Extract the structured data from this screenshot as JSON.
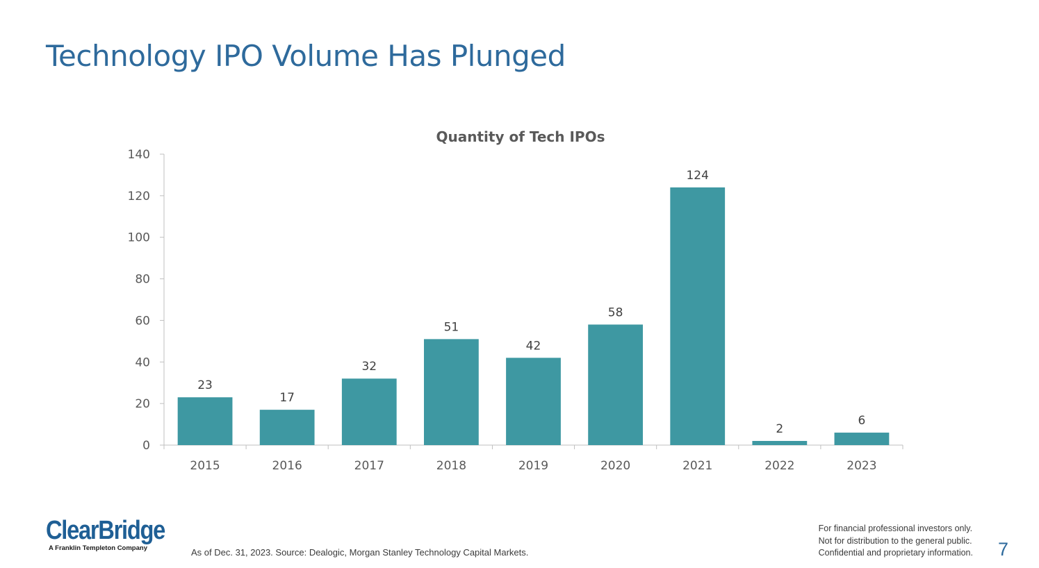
{
  "slide": {
    "title": "Technology IPO Volume Has Plunged",
    "footnote": "As of Dec. 31, 2023. Source: Dealogic, Morgan Stanley Technology Capital Markets.",
    "disclaimer": [
      "For financial professional investors only.",
      "Not for distribution to the general public.",
      "Confidential and proprietary information."
    ],
    "page_number": "7",
    "logo": {
      "name": "ClearBridge",
      "tagline": "A Franklin Templeton Company"
    }
  },
  "colors": {
    "title": "#2E6A9C",
    "bar": "#3E98A2",
    "axis": "#BFBFBF",
    "tick_text": "#595959",
    "chart_title": "#595959",
    "logo": "#1F5F95"
  },
  "chart_data": {
    "type": "bar",
    "title": "Quantity of Tech IPOs",
    "categories": [
      "2015",
      "2016",
      "2017",
      "2018",
      "2019",
      "2020",
      "2021",
      "2022",
      "2023"
    ],
    "values": [
      23,
      17,
      32,
      51,
      42,
      58,
      124,
      2,
      6
    ],
    "xlabel": "",
    "ylabel": "",
    "ylim": [
      0,
      140
    ],
    "yticks": [
      0,
      20,
      40,
      60,
      80,
      100,
      120,
      140
    ],
    "grid": false,
    "legend": "none",
    "data_labels": true
  }
}
